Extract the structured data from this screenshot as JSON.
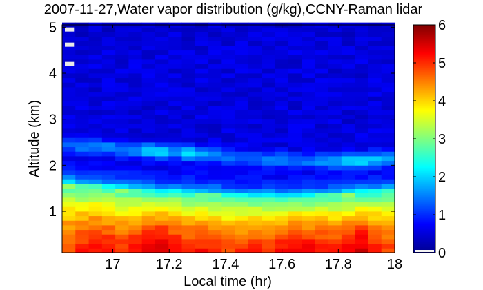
{
  "chart_data": {
    "type": "heatmap",
    "title": "2007-11-27,Water vapor distribution (g/kg),CCNY-Raman lidar",
    "xlabel": "Local time (hr)",
    "ylabel": "Altitude (km)",
    "xlim": [
      16.82,
      18.0
    ],
    "ylim": [
      0.1,
      5.05
    ],
    "x_ticks": [
      17,
      17.2,
      17.4,
      17.6,
      17.8,
      18
    ],
    "x_tick_labels": [
      "17",
      "17.2",
      "17.4",
      "17.6",
      "17.8",
      "18"
    ],
    "y_ticks": [
      1,
      2,
      3,
      4,
      5
    ],
    "y_tick_labels": [
      "1",
      "2",
      "3",
      "4",
      "5"
    ],
    "colorbar": {
      "min": 0,
      "max": 6,
      "ticks": [
        0,
        1,
        2,
        3,
        4,
        5,
        6
      ],
      "tick_labels": [
        "0",
        "1",
        "2",
        "3",
        "4",
        "5",
        "6"
      ],
      "colormap": "jet"
    },
    "grid": {
      "time_start": 16.82,
      "time_step": 0.0472,
      "columns": 25,
      "alt_start": 0.1,
      "alt_step": 0.1,
      "rows": 50
    },
    "profile_model": {
      "description": "Water vapor mixing ratio (g/kg) vs altitude, estimated per time column",
      "surface_value": [
        4.9,
        5.1,
        5.3,
        5.2,
        5.0,
        5.2,
        5.4,
        5.6,
        5.3,
        5.1,
        5.2,
        5.0,
        4.9,
        5.0,
        5.1,
        5.0,
        5.2,
        5.4,
        5.3,
        5.2,
        5.1,
        5.3,
        5.6,
        5.2,
        4.9
      ],
      "boundary_layer_top_km": [
        1.55,
        1.52,
        1.5,
        1.47,
        1.45,
        1.42,
        1.4,
        1.38,
        1.38,
        1.36,
        1.34,
        1.32,
        1.3,
        1.28,
        1.27,
        1.26,
        1.26,
        1.27,
        1.28,
        1.3,
        1.32,
        1.34,
        1.36,
        1.38,
        1.4
      ],
      "moist_layer_center_km": [
        2.45,
        2.42,
        2.4,
        2.38,
        2.35,
        2.33,
        2.32,
        2.3,
        2.3,
        2.28,
        2.25,
        2.22,
        2.2,
        2.18,
        2.16,
        2.14,
        2.12,
        2.1,
        2.1,
        2.1,
        2.1,
        2.12,
        2.12,
        2.14,
        2.15
      ],
      "moist_layer_peak": [
        1.6,
        1.7,
        1.7,
        1.8,
        1.8,
        1.9,
        2.2,
        2.4,
        1.9,
        2.3,
        2.1,
        1.8,
        1.7,
        1.6,
        1.6,
        1.7,
        1.8,
        1.7,
        1.7,
        1.9,
        1.9,
        2.2,
        2.3,
        2.0,
        1.9
      ],
      "free_troposphere_value": 0.75,
      "upper_value": 0.45,
      "missing_data": [
        {
          "column": 0,
          "alt_km": 4.2
        },
        {
          "column": 0,
          "alt_km": 4.62
        },
        {
          "column": 0,
          "alt_km": 4.95
        }
      ]
    }
  }
}
